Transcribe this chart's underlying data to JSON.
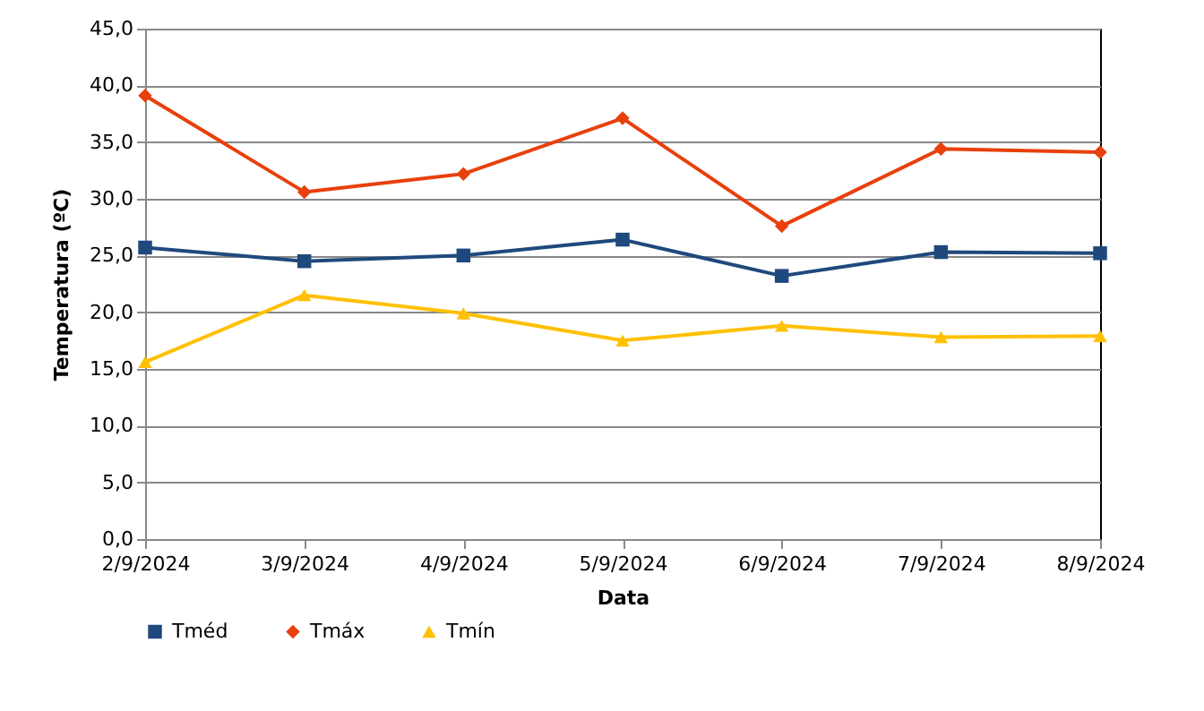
{
  "chart_data": {
    "type": "line",
    "xlabel": "Data",
    "ylabel": "Temperatura (ºC)",
    "categories": [
      "2/9/2024",
      "3/9/2024",
      "4/9/2024",
      "5/9/2024",
      "6/9/2024",
      "7/9/2024",
      "8/9/2024"
    ],
    "series": [
      {
        "name": "Tméd",
        "color": "#1f497d",
        "marker": "square",
        "values": [
          25.7,
          24.5,
          25.0,
          26.4,
          23.2,
          25.3,
          25.2
        ]
      },
      {
        "name": "Tmáx",
        "color": "#e8400c",
        "marker": "diamond",
        "values": [
          39.1,
          30.6,
          32.2,
          37.1,
          27.6,
          34.4,
          34.1
        ]
      },
      {
        "name": "Tmín",
        "color": "#ffc000",
        "marker": "triangle",
        "values": [
          15.6,
          21.5,
          19.9,
          17.5,
          18.8,
          17.8,
          17.9
        ]
      }
    ],
    "ylim": [
      0,
      45
    ],
    "yticks": [
      {
        "value": 0,
        "label": "0,0"
      },
      {
        "value": 5,
        "label": "5,0"
      },
      {
        "value": 10,
        "label": "10,0"
      },
      {
        "value": 15,
        "label": "15,0"
      },
      {
        "value": 20,
        "label": "20,0"
      },
      {
        "value": 25,
        "label": "25,0"
      },
      {
        "value": 30,
        "label": "30,0"
      },
      {
        "value": 35,
        "label": "35,0"
      },
      {
        "value": 40,
        "label": "40,0"
      },
      {
        "value": 45,
        "label": "45,0"
      }
    ],
    "grid": "y",
    "legend": "bottom",
    "line_style": "solid"
  }
}
